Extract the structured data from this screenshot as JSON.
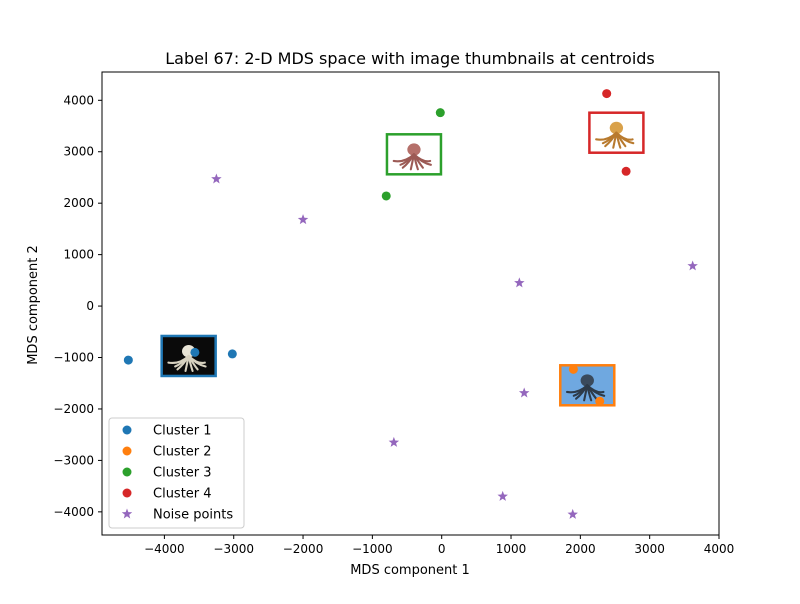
{
  "chart_data": {
    "type": "scatter",
    "title": "Label 67: 2-D MDS space with image thumbnails at centroids",
    "xlabel": "MDS component 1",
    "ylabel": "MDS component 2",
    "xlim": [
      -4900,
      4000
    ],
    "ylim": [
      -4450,
      4550
    ],
    "xticks": [
      -4000,
      -3000,
      -2000,
      -1000,
      0,
      1000,
      2000,
      3000,
      4000
    ],
    "yticks": [
      -4000,
      -3000,
      -2000,
      -1000,
      0,
      1000,
      2000,
      3000,
      4000
    ],
    "grid": false,
    "legend_position": "lower-left",
    "series": [
      {
        "name": "Cluster 1",
        "marker": "circle",
        "color": "#1f77b4",
        "points": [
          [
            -4520,
            -1050
          ],
          [
            -3560,
            -900
          ],
          [
            -3020,
            -930
          ]
        ],
        "thumbnail": {
          "center": [
            -3650,
            -970
          ],
          "subject": "dark octopus on black background"
        }
      },
      {
        "name": "Cluster 2",
        "marker": "circle",
        "color": "#ff7f0e",
        "points": [
          [
            1900,
            -1230
          ],
          [
            2280,
            -1850
          ]
        ],
        "thumbnail": {
          "center": [
            2100,
            -1540
          ],
          "subject": "octopus on blue water"
        }
      },
      {
        "name": "Cluster 3",
        "marker": "circle",
        "color": "#2ca02c",
        "points": [
          [
            -800,
            2140
          ],
          [
            -20,
            3760
          ]
        ],
        "thumbnail": {
          "center": [
            -400,
            2950
          ],
          "subject": "red octopus illustration"
        }
      },
      {
        "name": "Cluster 4",
        "marker": "circle",
        "color": "#d62728",
        "points": [
          [
            2380,
            4130
          ],
          [
            2660,
            2620
          ]
        ],
        "thumbnail": {
          "center": [
            2520,
            3370
          ],
          "subject": "orange octopus drawing"
        }
      },
      {
        "name": "Noise points",
        "marker": "star",
        "color": "#9467bd",
        "points": [
          [
            -3250,
            2470
          ],
          [
            -2000,
            1680
          ],
          [
            1120,
            450
          ],
          [
            3620,
            780
          ],
          [
            1190,
            -1690
          ],
          [
            -690,
            -2650
          ],
          [
            880,
            -3700
          ],
          [
            1890,
            -4050
          ]
        ]
      }
    ]
  }
}
